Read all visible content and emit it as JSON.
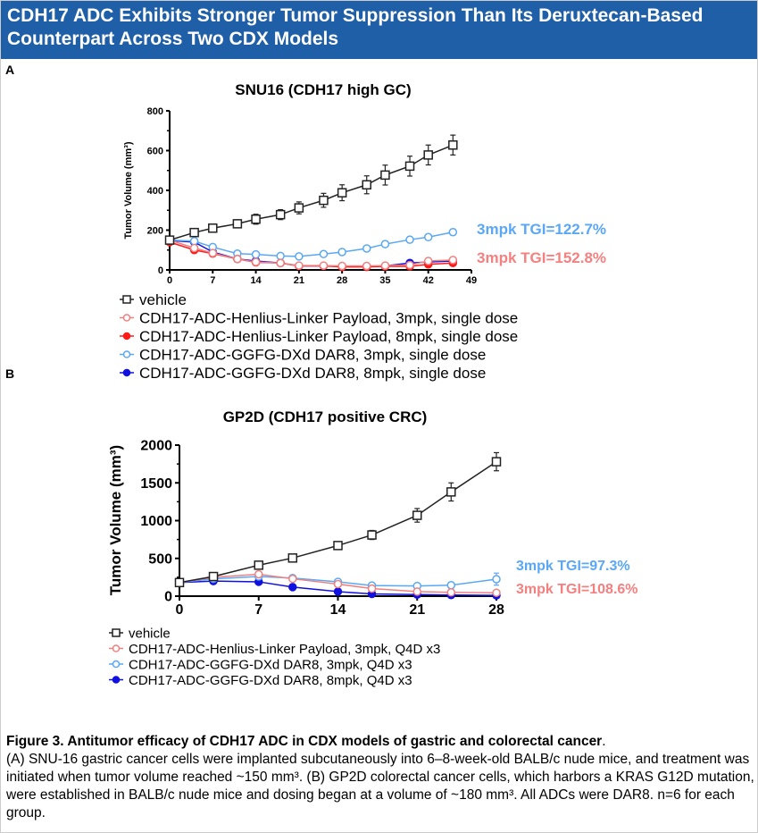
{
  "header": {
    "title": "CDH17 ADC Exhibits Stronger Tumor Suppression Than Its Deruxtecan-Based Counterpart Across Two CDX Models"
  },
  "panels": {
    "a": "A",
    "b": "B"
  },
  "caption": {
    "title": "Figure 3. Antitumor efficacy of CDH17 ADC in CDX models of gastric and colorectal cancer",
    "body": "(A) SNU-16 gastric cancer cells were implanted subcutaneously into 6–8-week-old BALB/c nude mice, and treatment was initiated when tumor volume reached ~150 mm³. (B) GP2D colorectal cancer cells, which harbors a KRAS G12D mutation, were established in BALB/c nude mice and dosing began at a volume of ~180 mm³. All ADCs were DAR8. n=6 for each group."
  },
  "chart_data": [
    {
      "type": "line",
      "title": "SNU16 (CDH17 high GC)",
      "ylabel": "Tumor Volume (mm³)",
      "xlabel": "",
      "xlim": [
        0,
        49
      ],
      "ylim": [
        0,
        800
      ],
      "xticks": [
        "0",
        "7",
        "14",
        "21",
        "28",
        "35",
        "42",
        "49"
      ],
      "yticks": [
        "0",
        "200",
        "400",
        "600",
        "800"
      ],
      "legend": "bottom",
      "x": [
        0,
        4,
        7,
        11,
        14,
        18,
        21,
        25,
        28,
        32,
        35,
        39,
        42,
        46
      ],
      "series": [
        {
          "name": "vehicle",
          "color": "#222222",
          "marker": "open-square",
          "values": [
            150,
            188,
            210,
            232,
            255,
            278,
            312,
            350,
            388,
            428,
            477,
            522,
            578,
            628
          ],
          "err": [
            15,
            15,
            20,
            20,
            25,
            25,
            30,
            35,
            40,
            45,
            50,
            50,
            50,
            50
          ]
        },
        {
          "name": "CDH17-ADC-Henlius-Linker Payload, 3mpk, single dose",
          "color": "#f08080",
          "marker": "open-circle",
          "values": [
            150,
            110,
            85,
            55,
            40,
            35,
            22,
            22,
            20,
            20,
            22,
            25,
            45,
            50
          ],
          "err": [
            10,
            10,
            8,
            6,
            5,
            5,
            4,
            4,
            4,
            4,
            4,
            5,
            6,
            6
          ]
        },
        {
          "name": "CDH17-ADC-Henlius-Linker Payload, 8mpk, single dose",
          "color": "#ff1a1a",
          "marker": "filled-circle",
          "values": [
            140,
            100,
            82,
            55,
            38,
            35,
            20,
            20,
            15,
            15,
            18,
            18,
            28,
            35
          ],
          "err": [
            10,
            12,
            8,
            6,
            5,
            5,
            4,
            4,
            4,
            4,
            4,
            5,
            6,
            6
          ]
        },
        {
          "name": "CDH17-ADC-GGFG-DXd DAR8, 3mpk, single dose",
          "color": "#5aa8f5",
          "marker": "open-circle",
          "values": [
            150,
            145,
            115,
            82,
            78,
            70,
            68,
            80,
            90,
            108,
            130,
            152,
            165,
            190
          ],
          "err": [
            10,
            12,
            10,
            8,
            8,
            8,
            8,
            8,
            10,
            12,
            15,
            15,
            12,
            15
          ]
        },
        {
          "name": "CDH17-ADC-GGFG-DXd DAR8, 8mpk, single dose",
          "color": "#1010e0",
          "marker": "filled-circle",
          "values": [
            148,
            140,
            90,
            55,
            45,
            35,
            20,
            20,
            18,
            18,
            20,
            35,
            40,
            45
          ],
          "err": [
            10,
            10,
            8,
            6,
            5,
            5,
            4,
            4,
            4,
            4,
            4,
            5,
            6,
            6
          ]
        }
      ],
      "annotations": [
        {
          "text": "3mpk TGI=122.7%",
          "color": "#5aa8f5"
        },
        {
          "text": "3mpk TGI=152.8%",
          "color": "#f58080"
        }
      ]
    },
    {
      "type": "line",
      "title": "GP2D (CDH17 positive CRC)",
      "ylabel": "Tumor Volume (mm³)",
      "xlabel": "",
      "xlim": [
        0,
        28
      ],
      "ylim": [
        0,
        2000
      ],
      "xticks": [
        "0",
        "7",
        "14",
        "21",
        "28"
      ],
      "yticks": [
        "0",
        "500",
        "1000",
        "1500",
        "2000"
      ],
      "legend": "bottom",
      "x": [
        0,
        3,
        7,
        10,
        14,
        17,
        21,
        24,
        28
      ],
      "series": [
        {
          "name": "vehicle",
          "color": "#222222",
          "marker": "open-square",
          "values": [
            180,
            260,
            410,
            505,
            670,
            810,
            1070,
            1380,
            1780
          ],
          "err": [
            15,
            20,
            25,
            25,
            50,
            60,
            90,
            120,
            120
          ]
        },
        {
          "name": "CDH17-ADC-Henlius-Linker Payload, 3mpk, Q4D x3",
          "color": "#f08080",
          "marker": "open-circle",
          "values": [
            180,
            250,
            290,
            230,
            160,
            100,
            60,
            50,
            45
          ],
          "err": [
            15,
            15,
            15,
            15,
            12,
            10,
            8,
            8,
            8
          ]
        },
        {
          "name": "CDH17-ADC-GGFG-DXd DAR8, 3mpk, Q4D x3",
          "color": "#5aa8f5",
          "marker": "open-circle",
          "values": [
            180,
            230,
            260,
            240,
            190,
            140,
            135,
            145,
            225
          ],
          "err": [
            15,
            15,
            15,
            20,
            25,
            25,
            30,
            40,
            80
          ]
        },
        {
          "name": "CDH17-ADC-GGFG-DXd DAR8, 8mpk, Q4D x3",
          "color": "#1010e0",
          "marker": "filled-circle",
          "values": [
            180,
            200,
            190,
            120,
            60,
            30,
            20,
            15,
            10
          ],
          "err": [
            10,
            10,
            10,
            10,
            8,
            5,
            5,
            5,
            5
          ]
        }
      ],
      "annotations": [
        {
          "text": "3mpk TGI=97.3%",
          "color": "#5aa8f5"
        },
        {
          "text": "3mpk TGI=108.6%",
          "color": "#f58080"
        }
      ]
    }
  ]
}
